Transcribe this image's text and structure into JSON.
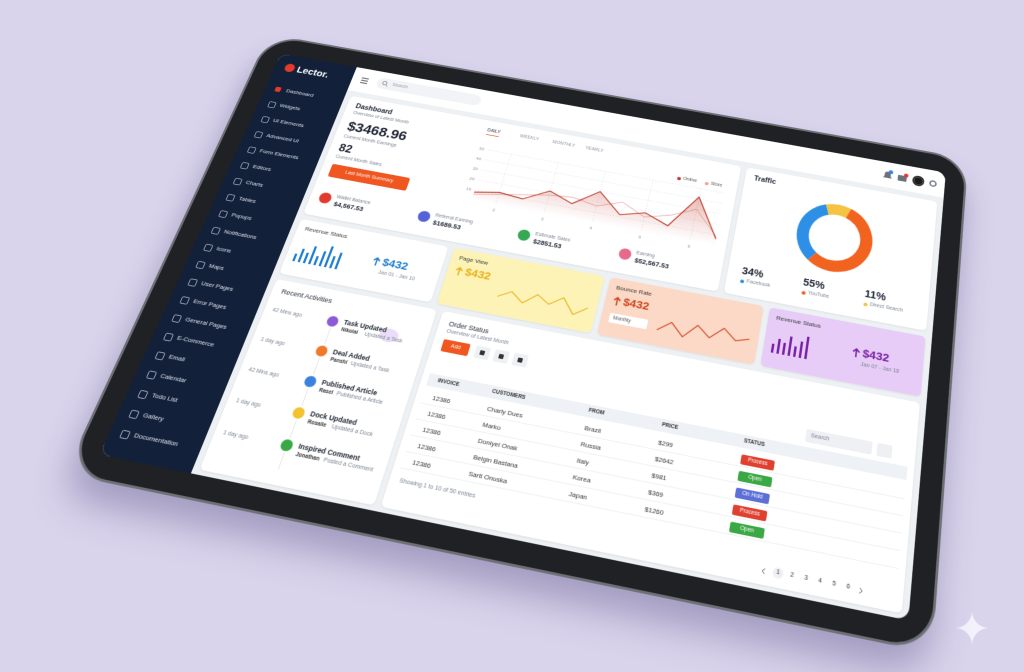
{
  "brand": "Lector.",
  "search_placeholder": "Search",
  "sidebar": [
    "Dashboard",
    "Widgets",
    "UI Elements",
    "Advanced UI",
    "Form Elements",
    "Editors",
    "Charts",
    "Tables",
    "Popups",
    "Notifications",
    "Icons",
    "Maps",
    "User Pages",
    "Error Pages",
    "General Pages",
    "E-Commerce",
    "Email",
    "Calendar",
    "Todo List",
    "Gallery",
    "Documentation"
  ],
  "dashboard": {
    "title": "Dashboard",
    "subtitle": "Overview of Latest Month",
    "earnings": "$3468.96",
    "earnings_label": "Current Month Earnings",
    "sales": 82,
    "sales_label": "Current Month Sales",
    "button": "Last Month Summary",
    "tabs": [
      "DAILY",
      "WEEKLY",
      "MONTHLY",
      "YEARLY"
    ],
    "chart": {
      "type": "line",
      "x": [
        1.5,
        2,
        2.5,
        3,
        3.5,
        4,
        4.5,
        5,
        5.5,
        6,
        6.5
      ],
      "xlim": [
        1.5,
        6.5
      ],
      "xticks": [
        2,
        3,
        4,
        5,
        6
      ],
      "ylim": [
        0,
        50
      ],
      "yticks": [
        10,
        20,
        30,
        40,
        50
      ],
      "grid": true,
      "series": [
        {
          "name": "Online",
          "color": "#c0392b",
          "values": [
            8,
            12,
            10,
            22,
            14,
            30,
            12,
            18,
            10,
            42,
            6
          ]
        },
        {
          "name": "Store",
          "color": "#e9a3a0",
          "values": [
            6,
            10,
            14,
            18,
            20,
            16,
            24,
            14,
            20,
            30,
            8
          ]
        }
      ]
    },
    "stats": [
      {
        "label": "Wallet Balance",
        "value": "$4,567.53",
        "color": "#e23b2e"
      },
      {
        "label": "Referral Earning",
        "value": "$1689.53",
        "color": "#5563d6"
      },
      {
        "label": "Estimate Sales",
        "value": "$2851.53",
        "color": "#34a853"
      },
      {
        "label": "Earning",
        "value": "$52,567.53",
        "color": "#e86a8a"
      }
    ]
  },
  "traffic": {
    "type": "pie",
    "title": "Traffic",
    "labels": [
      "Facebook",
      "YouTube",
      "Direct Search"
    ],
    "values": [
      34,
      55,
      11
    ],
    "value_labels": [
      "34%",
      "55%",
      "11%"
    ],
    "colors": [
      "#2e8fe6",
      "#f2631f",
      "#f5c242"
    ]
  },
  "cards": [
    {
      "title": "Revenue Status",
      "value": "$432",
      "date": "Jan 01 - Jan 10",
      "bars": [
        5,
        9,
        7,
        12,
        6,
        10,
        14,
        8,
        11
      ],
      "color": "#1f7fd1",
      "bg": "#ffffff"
    },
    {
      "title": "Page View",
      "value": "$432",
      "line": [
        6,
        10,
        5,
        11,
        7,
        12,
        4,
        9
      ],
      "color": "#e8b21c",
      "bg": "#fdf3b6"
    },
    {
      "title": "Bounce Rate",
      "value": "$432",
      "select": "Monthly",
      "line": [
        4,
        9,
        3,
        10,
        5,
        11,
        6,
        8
      ],
      "color": "#d2451e",
      "bg": "#fbd9c6"
    },
    {
      "title": "Revenue Status",
      "value": "$432",
      "date": "Jan 07 - Jan 18",
      "bars": [
        6,
        10,
        8,
        13,
        7,
        11,
        15
      ],
      "color": "#7a1fa6",
      "bg": "#e6ccf6"
    }
  ],
  "activities": {
    "title": "Recent Activities",
    "items": [
      {
        "time": "42 Mins ago",
        "title": "Task Updated",
        "by": "Nikolai",
        "desc": "Updated a Task",
        "color": "#8e5bd6"
      },
      {
        "time": "1 day ago",
        "title": "Deal Added",
        "by": "Panshi",
        "desc": "Updated a Task",
        "color": "#f07a2b"
      },
      {
        "time": "42 Mins ago",
        "title": "Published Article",
        "by": "Rasel",
        "desc": "Published a Article",
        "color": "#3b82e0"
      },
      {
        "time": "1 day ago",
        "title": "Dock Updated",
        "by": "Rosalie",
        "desc": "Updated a Dock",
        "color": "#f2c230"
      },
      {
        "time": "1 day ago",
        "title": "Inspired Comment",
        "by": "Jonathan",
        "desc": "Posted a Comment",
        "color": "#3aa845"
      }
    ]
  },
  "orders": {
    "title": "Order Status",
    "subtitle": "Overview of Latest Month",
    "button": "Add",
    "search": "Search",
    "columns": [
      "INVOICE",
      "CUSTOMERS",
      "FROM",
      "PRICE",
      "STATUS"
    ],
    "rows": [
      {
        "invoice": 12386,
        "customer": "Charly Dues",
        "from": "Brazil",
        "price": "$299",
        "status": "Process",
        "status_color": "#e0402f"
      },
      {
        "invoice": 12386,
        "customer": "Marko",
        "from": "Russia",
        "price": "$2642",
        "status": "Open",
        "status_color": "#3aa845"
      },
      {
        "invoice": 12386,
        "customer": "Doniyel Onak",
        "from": "Italy",
        "price": "$981",
        "status": "On Hold",
        "status_color": "#5b6fd6"
      },
      {
        "invoice": 12386,
        "customer": "Belgin Bastana",
        "from": "Korea",
        "price": "$369",
        "status": "Process",
        "status_color": "#e0402f"
      },
      {
        "invoice": 12386,
        "customer": "Sarti Onuska",
        "from": "Japan",
        "price": "$1260",
        "status": "Open",
        "status_color": "#3aa845"
      }
    ],
    "footer": "Showing 1 to 10 of 50 entries",
    "pages": [
      1,
      2,
      3,
      4,
      5,
      6
    ]
  }
}
